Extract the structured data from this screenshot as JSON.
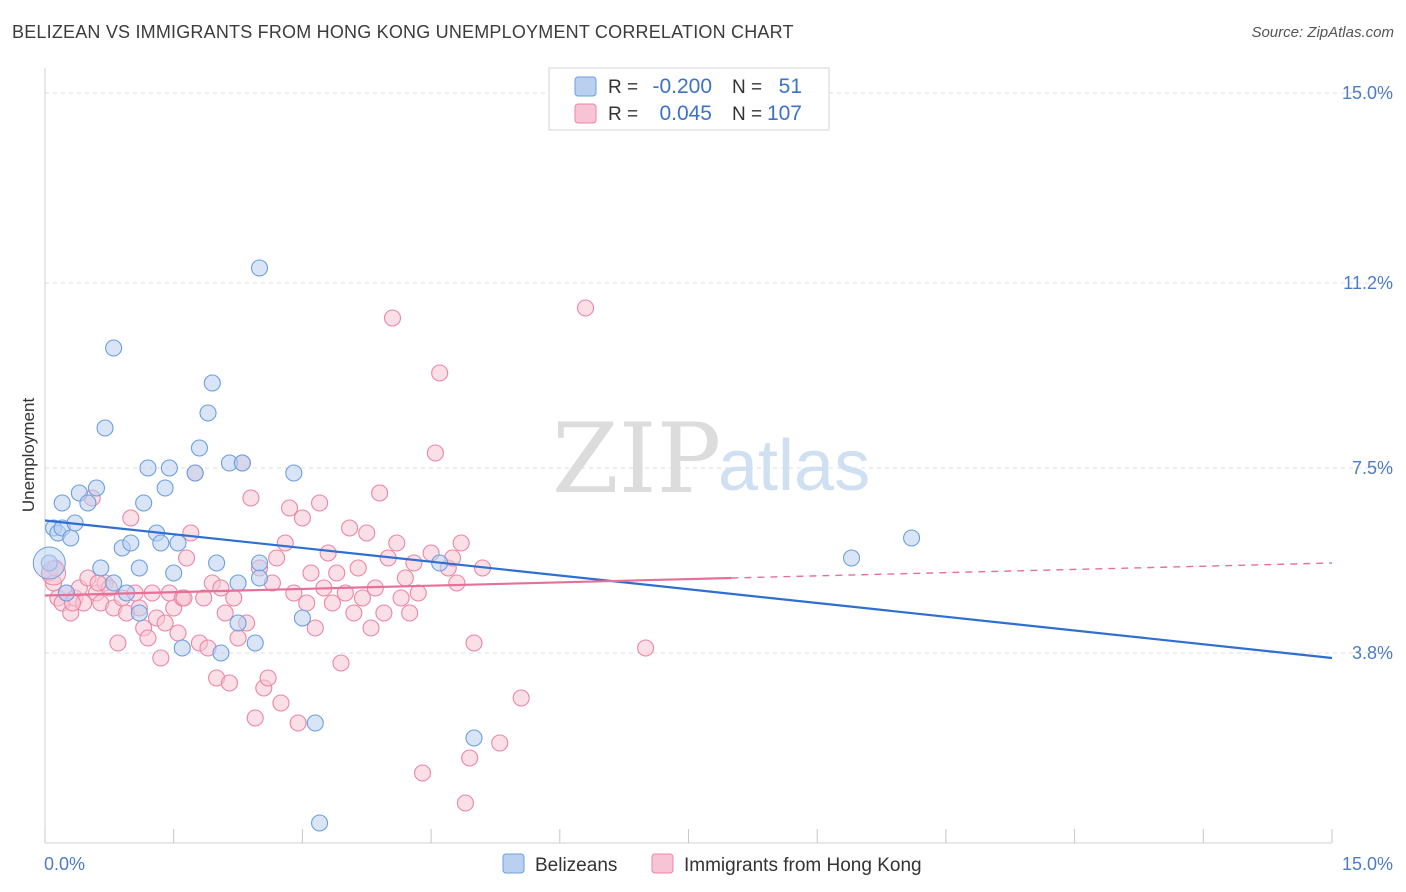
{
  "header": {
    "title": "BELIZEAN VS IMMIGRANTS FROM HONG KONG UNEMPLOYMENT CORRELATION CHART",
    "source": "Source: ZipAtlas.com"
  },
  "watermark": {
    "zip": "ZIP",
    "atlas": "atlas"
  },
  "colors": {
    "blue": "#6a9fe0",
    "blue_fill": "#b9d0f1",
    "blue_line": "#2e6fd1",
    "pink": "#ec85a7",
    "pink_fill": "#f6c4d4",
    "pink_line": "#e5709a",
    "grid": "#dcdcdc",
    "tick_label": "#4d7cc7"
  },
  "chart_data": {
    "type": "scatter",
    "title": "BELIZEAN VS IMMIGRANTS FROM HONG KONG UNEMPLOYMENT CORRELATION CHART",
    "xlabel": "",
    "ylabel": "Unemployment",
    "xlim": [
      0,
      15
    ],
    "ylim": [
      0,
      15.5
    ],
    "x_tick_labels": {
      "left": "0.0%",
      "right": "15.0%"
    },
    "y_ticks": [
      {
        "value": 3.8,
        "label": "3.8%"
      },
      {
        "value": 7.5,
        "label": "7.5%"
      },
      {
        "value": 11.2,
        "label": "11.2%"
      },
      {
        "value": 15.0,
        "label": "15.0%"
      }
    ],
    "legend": {
      "position": "top-center",
      "rows": [
        {
          "series": "Belizeans",
          "r_label": "R =",
          "r_value": "-0.200",
          "n_label": "N =",
          "n_value": "51"
        },
        {
          "series": "Immigrants from Hong Kong",
          "r_label": "R =",
          "r_value": "0.045",
          "n_label": "N =",
          "n_value": "107"
        }
      ]
    },
    "bottom_legend": [
      "Belizeans",
      "Immigrants from Hong Kong"
    ],
    "series": [
      {
        "name": "Belizeans",
        "trend": {
          "x0": 0.0,
          "y0": 6.45,
          "x1": 15.0,
          "y1": 3.7
        },
        "points": [
          [
            0.05,
            5.6
          ],
          [
            0.1,
            6.3
          ],
          [
            0.15,
            6.2
          ],
          [
            0.2,
            6.8
          ],
          [
            0.2,
            6.3
          ],
          [
            0.3,
            6.1
          ],
          [
            0.35,
            6.4
          ],
          [
            0.4,
            7.0
          ],
          [
            0.5,
            6.8
          ],
          [
            0.6,
            7.1
          ],
          [
            0.65,
            5.5
          ],
          [
            0.7,
            8.3
          ],
          [
            0.8,
            5.2
          ],
          [
            0.8,
            9.9
          ],
          [
            0.9,
            5.9
          ],
          [
            0.95,
            5.0
          ],
          [
            1.0,
            6.0
          ],
          [
            1.1,
            4.6
          ],
          [
            1.1,
            5.5
          ],
          [
            1.15,
            6.8
          ],
          [
            1.2,
            7.5
          ],
          [
            1.3,
            6.2
          ],
          [
            1.35,
            6.0
          ],
          [
            1.4,
            7.1
          ],
          [
            1.45,
            7.5
          ],
          [
            1.5,
            5.4
          ],
          [
            1.55,
            6.0
          ],
          [
            1.75,
            7.4
          ],
          [
            1.6,
            3.9
          ],
          [
            1.8,
            7.9
          ],
          [
            1.9,
            8.6
          ],
          [
            1.95,
            9.2
          ],
          [
            2.0,
            5.6
          ],
          [
            2.05,
            3.8
          ],
          [
            2.15,
            7.6
          ],
          [
            2.3,
            7.6
          ],
          [
            2.25,
            4.4
          ],
          [
            2.25,
            5.2
          ],
          [
            2.5,
            5.6
          ],
          [
            2.5,
            5.3
          ],
          [
            2.45,
            4.0
          ],
          [
            2.5,
            11.5
          ],
          [
            2.9,
            7.4
          ],
          [
            3.0,
            4.5
          ],
          [
            3.15,
            2.4
          ],
          [
            3.2,
            0.4
          ],
          [
            4.6,
            5.6
          ],
          [
            5.0,
            2.1
          ],
          [
            9.4,
            5.7
          ],
          [
            10.1,
            6.1
          ],
          [
            0.25,
            5.0
          ]
        ]
      },
      {
        "name": "Immigrants from Hong Kong",
        "trend": {
          "x0": 0.0,
          "y0": 4.95,
          "x1": 8.0,
          "y1": 5.3,
          "dash_to_x": 15.0,
          "dash_to_y": 5.6
        },
        "points": [
          [
            0.05,
            5.4
          ],
          [
            0.1,
            5.2
          ],
          [
            0.15,
            4.9
          ],
          [
            0.2,
            4.8
          ],
          [
            0.25,
            5.0
          ],
          [
            0.3,
            4.6
          ],
          [
            0.35,
            4.9
          ],
          [
            0.4,
            5.1
          ],
          [
            0.45,
            4.8
          ],
          [
            0.5,
            5.3
          ],
          [
            0.55,
            6.9
          ],
          [
            0.6,
            5.0
          ],
          [
            0.65,
            4.8
          ],
          [
            0.7,
            5.2
          ],
          [
            0.75,
            5.1
          ],
          [
            0.8,
            4.7
          ],
          [
            0.85,
            4.0
          ],
          [
            0.9,
            4.9
          ],
          [
            0.95,
            4.6
          ],
          [
            1.0,
            6.5
          ],
          [
            1.05,
            5.0
          ],
          [
            1.1,
            4.7
          ],
          [
            1.15,
            4.3
          ],
          [
            1.2,
            4.1
          ],
          [
            1.25,
            5.0
          ],
          [
            1.3,
            4.5
          ],
          [
            1.35,
            3.7
          ],
          [
            1.4,
            4.4
          ],
          [
            1.45,
            5.0
          ],
          [
            1.5,
            4.7
          ],
          [
            1.55,
            4.2
          ],
          [
            1.6,
            4.9
          ],
          [
            1.65,
            5.7
          ],
          [
            1.7,
            6.2
          ],
          [
            1.75,
            7.4
          ],
          [
            1.8,
            4.0
          ],
          [
            1.85,
            4.9
          ],
          [
            1.9,
            3.9
          ],
          [
            1.95,
            5.2
          ],
          [
            2.0,
            3.3
          ],
          [
            2.05,
            5.1
          ],
          [
            2.1,
            4.6
          ],
          [
            2.15,
            3.2
          ],
          [
            2.2,
            4.9
          ],
          [
            2.25,
            4.1
          ],
          [
            2.3,
            7.6
          ],
          [
            2.35,
            4.4
          ],
          [
            2.4,
            6.9
          ],
          [
            2.45,
            2.5
          ],
          [
            2.5,
            5.5
          ],
          [
            2.55,
            3.1
          ],
          [
            2.6,
            3.3
          ],
          [
            2.65,
            5.2
          ],
          [
            2.7,
            5.7
          ],
          [
            2.75,
            2.8
          ],
          [
            2.8,
            6.0
          ],
          [
            2.85,
            6.7
          ],
          [
            2.9,
            5.0
          ],
          [
            2.95,
            2.4
          ],
          [
            3.0,
            6.5
          ],
          [
            3.05,
            4.8
          ],
          [
            3.1,
            5.4
          ],
          [
            3.15,
            4.3
          ],
          [
            3.2,
            6.8
          ],
          [
            3.25,
            5.1
          ],
          [
            3.3,
            5.8
          ],
          [
            3.35,
            4.8
          ],
          [
            3.4,
            5.4
          ],
          [
            3.45,
            3.6
          ],
          [
            3.5,
            5.0
          ],
          [
            3.55,
            6.3
          ],
          [
            3.6,
            4.6
          ],
          [
            3.65,
            5.5
          ],
          [
            3.7,
            4.9
          ],
          [
            3.75,
            6.2
          ],
          [
            3.8,
            4.3
          ],
          [
            3.85,
            5.1
          ],
          [
            3.9,
            7.0
          ],
          [
            3.95,
            4.6
          ],
          [
            4.0,
            5.7
          ],
          [
            4.05,
            10.5
          ],
          [
            4.1,
            6.0
          ],
          [
            4.15,
            4.9
          ],
          [
            4.2,
            5.3
          ],
          [
            4.25,
            4.6
          ],
          [
            4.3,
            5.6
          ],
          [
            4.35,
            5.0
          ],
          [
            4.4,
            1.4
          ],
          [
            4.5,
            5.8
          ],
          [
            4.55,
            7.8
          ],
          [
            4.6,
            9.4
          ],
          [
            4.7,
            5.5
          ],
          [
            4.75,
            5.7
          ],
          [
            4.8,
            5.2
          ],
          [
            4.85,
            6.0
          ],
          [
            4.9,
            0.8
          ],
          [
            4.95,
            1.7
          ],
          [
            5.0,
            4.0
          ],
          [
            5.1,
            5.5
          ],
          [
            5.3,
            2.0
          ],
          [
            5.55,
            2.9
          ],
          [
            6.3,
            10.7
          ],
          [
            7.0,
            3.9
          ],
          [
            0.12,
            5.5
          ],
          [
            0.32,
            4.8
          ],
          [
            0.62,
            5.2
          ],
          [
            1.62,
            4.9
          ]
        ]
      }
    ]
  }
}
